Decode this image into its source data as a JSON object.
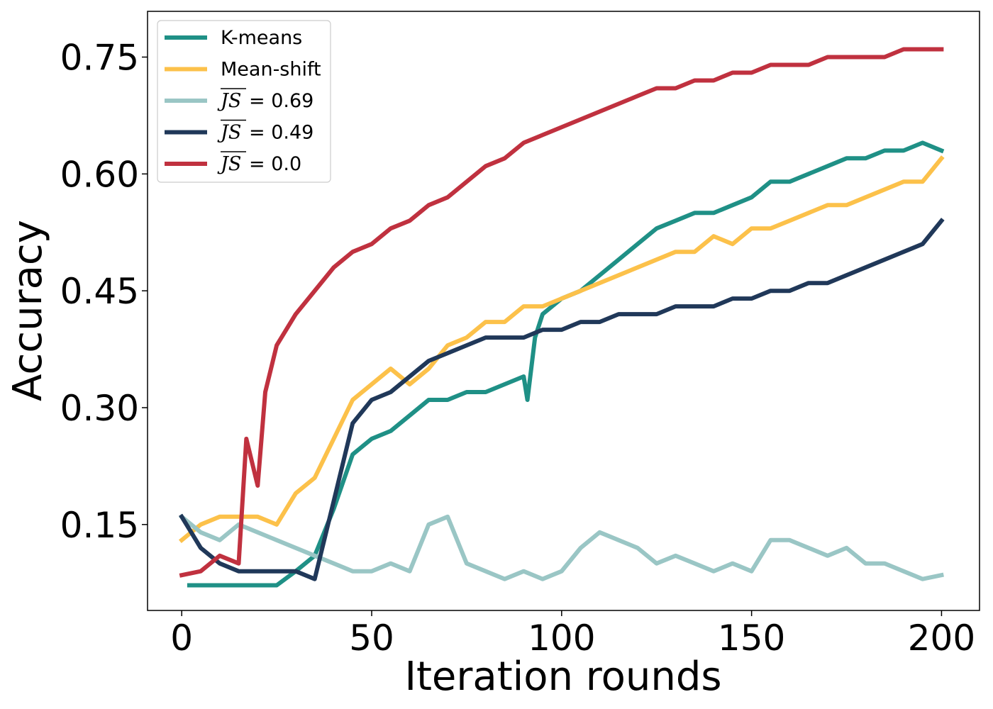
{
  "chart_data": {
    "type": "line",
    "xlabel": "Iteration rounds",
    "ylabel": "Accuracy",
    "xlim": [
      -9,
      210
    ],
    "ylim": [
      0.0397,
      0.8087
    ],
    "xticks": [
      0,
      50,
      100,
      150,
      200
    ],
    "yticks": [
      0.15,
      0.3,
      0.45,
      0.6,
      0.75
    ],
    "ytick_labels": [
      "0.15",
      "0.30",
      "0.45",
      "0.60",
      "0.75"
    ],
    "xtick_labels": [
      "0",
      "50",
      "100",
      "150",
      "200"
    ],
    "legend_position": "top-left",
    "series": [
      {
        "name": "K-means",
        "legend_label": "K-means",
        "color": "#1f9086",
        "x": [
          2,
          10,
          20,
          25,
          30,
          35,
          40,
          45,
          50,
          55,
          60,
          65,
          70,
          75,
          80,
          85,
          90,
          91,
          93,
          95,
          100,
          105,
          110,
          115,
          120,
          125,
          130,
          135,
          140,
          145,
          150,
          155,
          160,
          165,
          170,
          175,
          180,
          185,
          190,
          195,
          200
        ],
        "y": [
          0.072,
          0.072,
          0.072,
          0.072,
          0.09,
          0.11,
          0.17,
          0.24,
          0.26,
          0.27,
          0.29,
          0.31,
          0.31,
          0.32,
          0.32,
          0.33,
          0.34,
          0.31,
          0.39,
          0.42,
          0.44,
          0.45,
          0.47,
          0.49,
          0.51,
          0.53,
          0.54,
          0.55,
          0.55,
          0.56,
          0.57,
          0.59,
          0.59,
          0.6,
          0.61,
          0.62,
          0.62,
          0.63,
          0.63,
          0.64,
          0.63
        ]
      },
      {
        "name": "Mean-shift",
        "legend_label": "Mean-shift",
        "color": "#fcc14a",
        "x": [
          0,
          5,
          10,
          15,
          20,
          25,
          30,
          35,
          40,
          45,
          50,
          55,
          60,
          65,
          70,
          75,
          80,
          85,
          90,
          95,
          100,
          105,
          110,
          115,
          120,
          125,
          130,
          135,
          140,
          145,
          150,
          155,
          160,
          165,
          170,
          175,
          180,
          185,
          190,
          195,
          200
        ],
        "y": [
          0.13,
          0.15,
          0.16,
          0.16,
          0.16,
          0.15,
          0.19,
          0.21,
          0.26,
          0.31,
          0.33,
          0.35,
          0.33,
          0.35,
          0.38,
          0.39,
          0.41,
          0.41,
          0.43,
          0.43,
          0.44,
          0.45,
          0.46,
          0.47,
          0.48,
          0.49,
          0.5,
          0.5,
          0.52,
          0.51,
          0.53,
          0.53,
          0.54,
          0.55,
          0.56,
          0.56,
          0.57,
          0.58,
          0.59,
          0.59,
          0.62
        ]
      },
      {
        "name": "JS 0.69",
        "legend_label": "= 0.69",
        "color": "#9ac6c5",
        "x": [
          0,
          5,
          10,
          15,
          20,
          25,
          30,
          35,
          40,
          45,
          50,
          55,
          60,
          65,
          70,
          75,
          80,
          85,
          90,
          95,
          100,
          105,
          110,
          115,
          120,
          125,
          130,
          135,
          140,
          145,
          150,
          155,
          160,
          165,
          170,
          175,
          180,
          185,
          190,
          195,
          200
        ],
        "y": [
          0.16,
          0.14,
          0.13,
          0.15,
          0.14,
          0.13,
          0.12,
          0.11,
          0.1,
          0.09,
          0.09,
          0.1,
          0.09,
          0.15,
          0.16,
          0.1,
          0.09,
          0.08,
          0.09,
          0.08,
          0.09,
          0.12,
          0.14,
          0.13,
          0.12,
          0.1,
          0.11,
          0.1,
          0.09,
          0.1,
          0.09,
          0.13,
          0.13,
          0.12,
          0.11,
          0.12,
          0.1,
          0.1,
          0.09,
          0.08,
          0.085
        ]
      },
      {
        "name": "JS 0.49",
        "legend_label": "= 0.49",
        "color": "#203859",
        "x": [
          0,
          5,
          10,
          15,
          20,
          25,
          30,
          35,
          40,
          45,
          50,
          55,
          60,
          65,
          70,
          75,
          80,
          85,
          90,
          95,
          100,
          105,
          110,
          115,
          120,
          125,
          130,
          135,
          140,
          145,
          150,
          155,
          160,
          165,
          170,
          175,
          180,
          185,
          190,
          195,
          200
        ],
        "y": [
          0.16,
          0.12,
          0.1,
          0.09,
          0.09,
          0.09,
          0.09,
          0.08,
          0.18,
          0.28,
          0.31,
          0.32,
          0.34,
          0.36,
          0.37,
          0.38,
          0.39,
          0.39,
          0.39,
          0.4,
          0.4,
          0.41,
          0.41,
          0.42,
          0.42,
          0.42,
          0.43,
          0.43,
          0.43,
          0.44,
          0.44,
          0.45,
          0.45,
          0.46,
          0.46,
          0.47,
          0.48,
          0.49,
          0.5,
          0.51,
          0.54
        ]
      },
      {
        "name": "JS 0.0",
        "legend_label": "= 0.0",
        "color": "#c0313f",
        "x": [
          0,
          5,
          10,
          15,
          17,
          20,
          22,
          25,
          30,
          35,
          40,
          45,
          50,
          55,
          60,
          65,
          70,
          75,
          80,
          85,
          90,
          95,
          100,
          105,
          110,
          115,
          120,
          125,
          130,
          135,
          140,
          145,
          150,
          155,
          160,
          165,
          170,
          175,
          180,
          185,
          190,
          195,
          200
        ],
        "y": [
          0.085,
          0.09,
          0.11,
          0.1,
          0.26,
          0.2,
          0.32,
          0.38,
          0.42,
          0.45,
          0.48,
          0.5,
          0.51,
          0.53,
          0.54,
          0.56,
          0.57,
          0.59,
          0.61,
          0.62,
          0.64,
          0.65,
          0.66,
          0.67,
          0.68,
          0.69,
          0.7,
          0.71,
          0.71,
          0.72,
          0.72,
          0.73,
          0.73,
          0.74,
          0.74,
          0.74,
          0.75,
          0.75,
          0.75,
          0.75,
          0.76,
          0.76,
          0.76
        ]
      }
    ]
  }
}
